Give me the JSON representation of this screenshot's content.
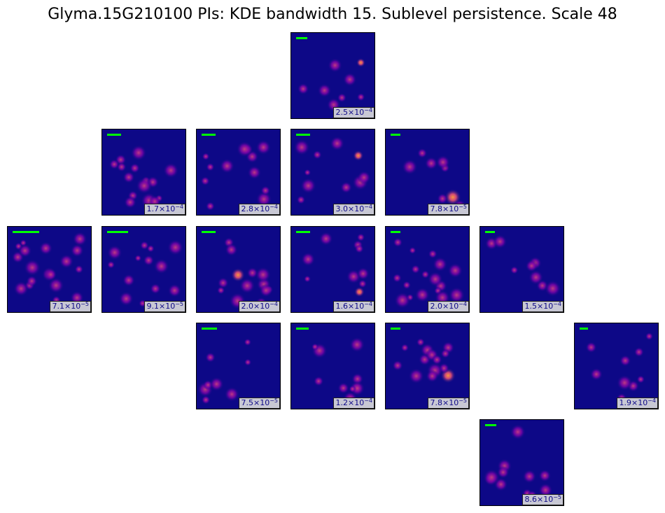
{
  "title": "Glyma.15G210100 PIs: KDE bandwidth 15. Sublevel persistence. Scale 48",
  "panels": [
    {
      "base": "2.5×10",
      "exp": "−4"
    },
    {
      "base": "1.7×10",
      "exp": "−4"
    },
    {
      "base": "2.8×10",
      "exp": "−4"
    },
    {
      "base": "3.0×10",
      "exp": "−4"
    },
    {
      "base": "7.8×10",
      "exp": "−5"
    },
    {
      "base": "7.1×10",
      "exp": "−5"
    },
    {
      "base": "9.1×10",
      "exp": "−5"
    },
    {
      "base": "2.0×10",
      "exp": "−4"
    },
    {
      "base": "1.6×10",
      "exp": "−4"
    },
    {
      "base": "2.0×10",
      "exp": "−4"
    },
    {
      "base": "1.5×10",
      "exp": "−4"
    },
    {
      "base": "7.5×10",
      "exp": "−5"
    },
    {
      "base": "1.2×10",
      "exp": "−4"
    },
    {
      "base": "7.8×10",
      "exp": "−5"
    },
    {
      "base": "1.9×10",
      "exp": "−4"
    },
    {
      "base": "8.6×10",
      "exp": "−5"
    }
  ]
}
